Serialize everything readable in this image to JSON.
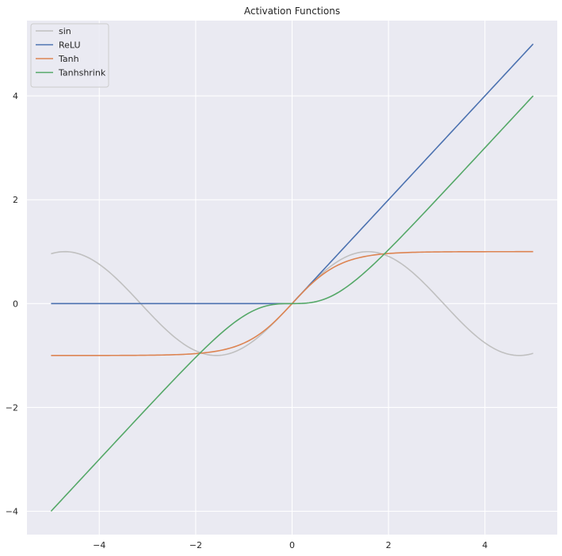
{
  "chart_data": {
    "type": "line",
    "title": "Activation Functions",
    "xlabel": "",
    "ylabel": "",
    "xlim": [
      -5.5,
      5.5
    ],
    "ylim": [
      -4.45,
      5.45
    ],
    "x_range": [
      -5,
      5
    ],
    "x_ticks": [
      -4,
      -2,
      0,
      2,
      4
    ],
    "y_ticks": [
      -4,
      -2,
      0,
      2,
      4
    ],
    "x_tick_labels": [
      "−4",
      "−2",
      "0",
      "2",
      "4"
    ],
    "y_tick_labels": [
      "−4",
      "−2",
      "0",
      "2",
      "4"
    ],
    "grid": true,
    "legend_position": "upper-left",
    "background_color": "#eaeaf2",
    "grid_color": "#ffffff",
    "series": [
      {
        "name": "sin",
        "function": "sin",
        "color": "#c0c0c0"
      },
      {
        "name": "ReLU",
        "function": "relu",
        "color": "#4c72b0"
      },
      {
        "name": "Tanh",
        "function": "tanh",
        "color": "#dd8452"
      },
      {
        "name": "Tanhshrink",
        "function": "tanhshrink",
        "color": "#55a868"
      }
    ]
  }
}
